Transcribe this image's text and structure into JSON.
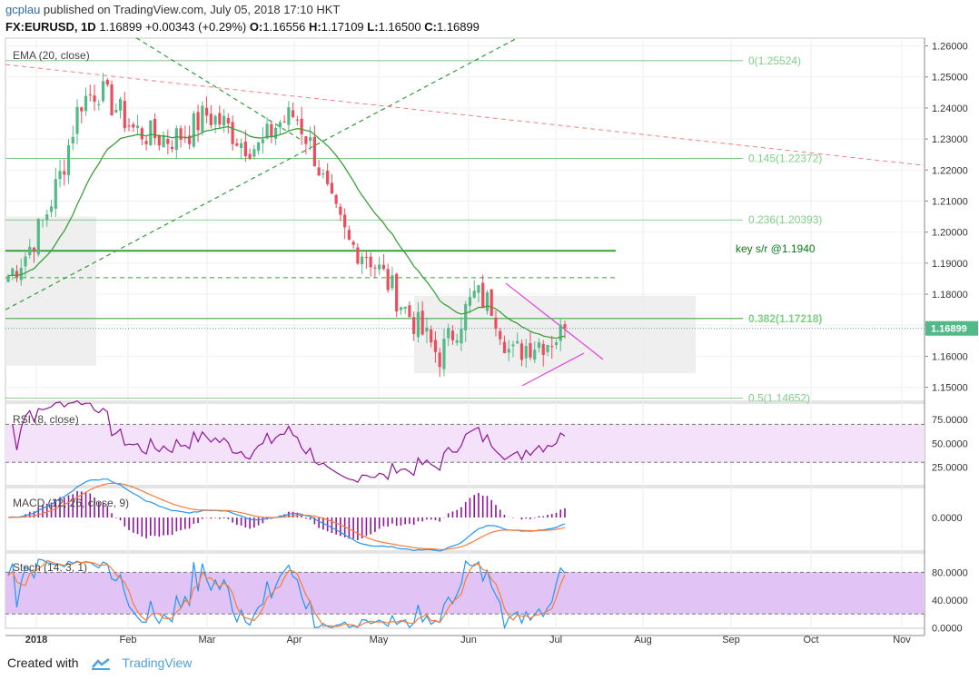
{
  "header": {
    "user": "gcplau",
    "published": " published on TradingView.com, July 05, 2018 17:10 HKT",
    "symbol": "FX:EURUSD, 1D",
    "last": "1.16899",
    "change": "+0.00343 (+0.29%)",
    "ohlc": {
      "o": "1.16556",
      "h": "1.17109",
      "l": "1.16500",
      "c": "1.16899"
    }
  },
  "footer": {
    "created": "Created with",
    "brand": "TradingView"
  },
  "chart_data": {
    "type": "candlestick",
    "title": "FX:EURUSD, 1D",
    "x_labels": [
      "2018",
      "Feb",
      "Mar",
      "Apr",
      "May",
      "Jun",
      "Jul",
      "Aug",
      "Sep",
      "Oct",
      "Nov"
    ],
    "price_axis": {
      "ticks": [
        "1.26000",
        "1.25000",
        "1.24000",
        "1.23000",
        "1.22000",
        "1.21000",
        "1.20000",
        "1.19000",
        "1.18000",
        "1.17000",
        "1.16000",
        "1.15000"
      ],
      "current_label": "1.16899"
    },
    "panes": {
      "main": {
        "indicator": "EMA (20, close)"
      },
      "rsi": {
        "label": "RSI (8, close)",
        "ticks": [
          "75.0000",
          "50.0000",
          "25.0000"
        ]
      },
      "macd": {
        "label": "MACD (12, 26, close, 9)",
        "ticks": [
          "0.0000"
        ]
      },
      "stoch": {
        "label": "Stoch (14, 3, 1)",
        "ticks": [
          "80.0000",
          "40.0000",
          "0.0000"
        ]
      }
    },
    "fib_levels": [
      {
        "label": "0(1.25524)",
        "value": 1.25524
      },
      {
        "label": "0.145(1.22372)",
        "value": 1.22372
      },
      {
        "label": "0.236(1.20393)",
        "value": 1.20393
      },
      {
        "label": "0.382(1.17218)",
        "value": 1.17218
      },
      {
        "label": "0.5(1.14652)",
        "value": 1.14652
      }
    ],
    "annotation": "key s/r @1.1940",
    "key_level": 1.194,
    "dashed_level": 1.1853,
    "last_price": 1.16899,
    "colors": {
      "up": "#53b987",
      "down": "#eb4d5c",
      "ema": "#3aa13a",
      "fib": "#4caf50",
      "trend_pink": "#e040e0",
      "rsi_line": "#8e1599",
      "rsi_band": "#f3e2fa",
      "stoch_band": "#e1c4f5",
      "stoch_k": "#2196f3",
      "stoch_d": "#f57c3a",
      "macd_line": "#2196f3",
      "signal_line": "#f57c3a",
      "hist": "#8e1599"
    },
    "weekly_closes": [
      1.186,
      1.193,
      1.204,
      1.22,
      1.242,
      1.246,
      1.24,
      1.233,
      1.231,
      1.23,
      1.232,
      1.238,
      1.235,
      1.229,
      1.227,
      1.235,
      1.238,
      1.226,
      1.208,
      1.196,
      1.193,
      1.185,
      1.176,
      1.168,
      1.16,
      1.17,
      1.18,
      1.176,
      1.16,
      1.164,
      1.165,
      1.168
    ]
  }
}
